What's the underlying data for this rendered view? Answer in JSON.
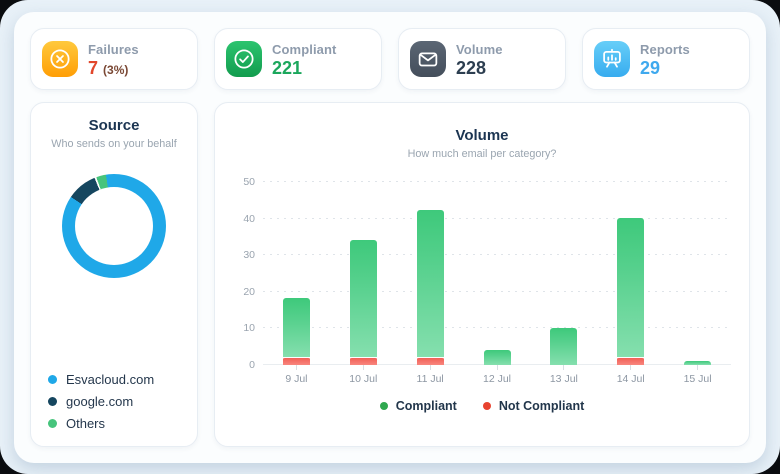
{
  "stats": [
    {
      "label": "Failures",
      "value": "7",
      "suffix": "(3%)",
      "icon": "circle-x-icon",
      "icon_color": "#FFA90A",
      "value_color": "#E2472B"
    },
    {
      "label": "Compliant",
      "value": "221",
      "icon": "circle-check-icon",
      "icon_color": "#1CB05C",
      "value_color": "#1BA75C"
    },
    {
      "label": "Volume",
      "value": "228",
      "icon": "envelope-icon",
      "icon_color": "#4E5866",
      "value_color": "#2C3E50"
    },
    {
      "label": "Reports",
      "value": "29",
      "icon": "presentation-board-icon",
      "icon_color": "#4EC0F5",
      "value_color": "#3FA9EE"
    }
  ],
  "chart_data": [
    {
      "type": "donut",
      "title": "Source",
      "subtitle": "Who sends on your behalf",
      "segments": [
        {
          "label": "Esvacloud.com",
          "color": "#1FA8E8",
          "approx_pct": 87.5
        },
        {
          "label": "google.com",
          "color": "#15465F",
          "approx_pct": 9.5
        },
        {
          "label": "Others",
          "color": "#46C47C",
          "approx_pct": 3
        }
      ],
      "legend_position": "bottom-left"
    },
    {
      "type": "bar",
      "stacked": true,
      "title": "Volume",
      "subtitle": "How much email per category?",
      "categories": [
        "9 Jul",
        "10 Jul",
        "11 Jul",
        "12 Jul",
        "13 Jul",
        "14 Jul",
        "15 Jul"
      ],
      "series": [
        {
          "name": "Compliant",
          "color": "#3EC97B",
          "legend_dot": "#2FA84F",
          "values": [
            16,
            32,
            40,
            4,
            10,
            38,
            1
          ]
        },
        {
          "name": "Not Compliant",
          "color": "#F25F56",
          "legend_dot": "#E8432F",
          "values": [
            2,
            2,
            2,
            0,
            0,
            2,
            0
          ]
        }
      ],
      "totals": [
        18,
        34,
        42,
        4,
        10,
        40,
        1
      ],
      "ylim": [
        0,
        50
      ],
      "yticks": [
        0,
        10,
        20,
        30,
        40,
        50
      ],
      "grid": "dotted-horizontal",
      "legend_position": "bottom"
    }
  ]
}
